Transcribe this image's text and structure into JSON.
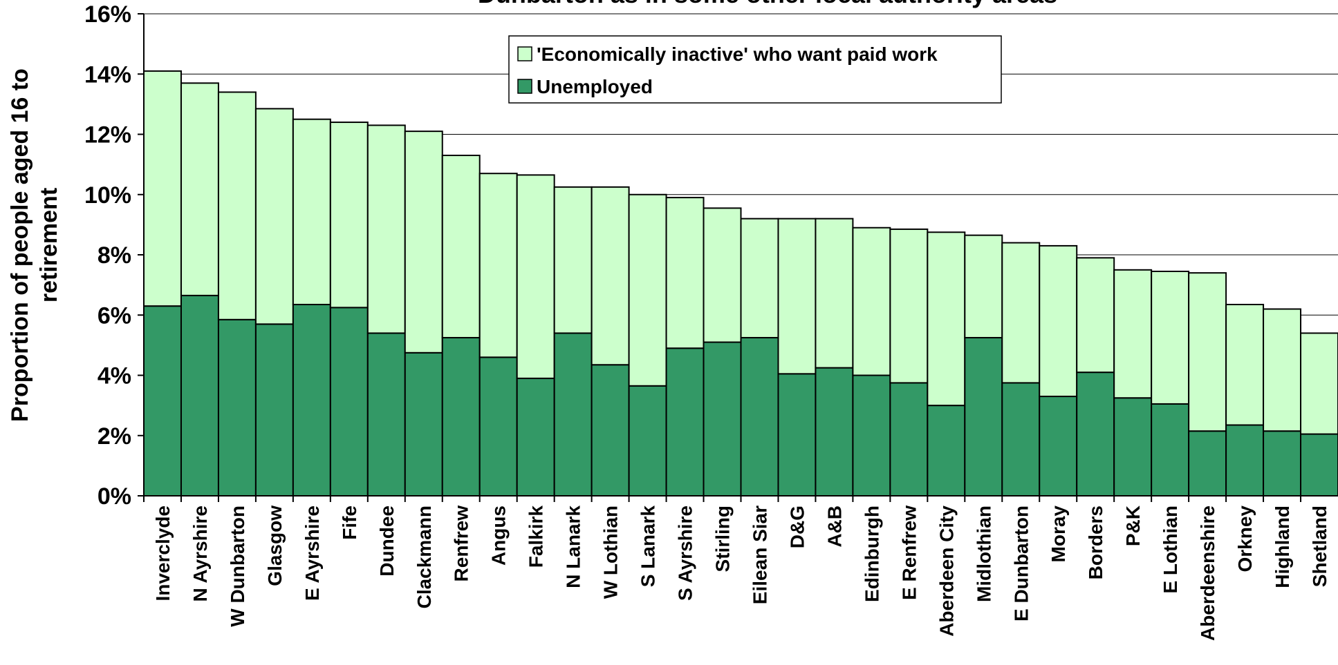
{
  "chart_data": {
    "type": "bar",
    "stacked": true,
    "title": "Dunbarton as in some other local authority areas",
    "xlabel": "",
    "ylabel": "Proportion of people aged 16 to retirement",
    "ylabel_lines": [
      "Proportion of people aged 16 to",
      "retirement"
    ],
    "ylim": [
      0,
      16
    ],
    "yticks": [
      0,
      2,
      4,
      6,
      8,
      10,
      12,
      14,
      16
    ],
    "ytick_labels": [
      "0%",
      "2%",
      "4%",
      "6%",
      "8%",
      "10%",
      "12%",
      "14%",
      "16%"
    ],
    "grid": true,
    "legend_position": "top-center",
    "categories": [
      "Inverclyde",
      "N Ayrshire",
      "W Dunbarton",
      "Glasgow",
      "E Ayrshire",
      "Fife",
      "Dundee",
      "Clackmann",
      "Renfrew",
      "Angus",
      "Falkirk",
      "N Lanark",
      "W Lothian",
      "S Lanark",
      "S Ayrshire",
      "Stirling",
      "Eilean Siar",
      "D&G",
      "A&B",
      "Edinburgh",
      "E Renfrew",
      "Aberdeen City",
      "Midlothian",
      "E Dunbarton",
      "Moray",
      "Borders",
      "P&K",
      "E Lothian",
      "Aberdeenshire",
      "Orkney",
      "Highland",
      "Shetland"
    ],
    "series": [
      {
        "name": "Unemployed",
        "color": "#339966",
        "values": [
          6.3,
          6.65,
          5.85,
          5.7,
          6.35,
          6.25,
          5.4,
          4.75,
          5.25,
          4.6,
          3.9,
          5.4,
          4.35,
          3.65,
          4.9,
          5.1,
          5.25,
          4.05,
          4.25,
          4.0,
          3.75,
          3.0,
          5.25,
          3.75,
          3.3,
          4.1,
          3.25,
          3.05,
          2.15,
          2.35,
          2.15,
          2.05
        ]
      },
      {
        "name": "'Economically inactive' who want paid work",
        "color": "#ccffcc",
        "values": [
          7.8,
          7.05,
          7.55,
          7.15,
          6.15,
          6.15,
          6.9,
          7.35,
          6.05,
          6.1,
          6.75,
          4.85,
          5.9,
          6.35,
          5.0,
          4.45,
          3.95,
          5.15,
          4.95,
          4.9,
          5.1,
          5.75,
          3.4,
          4.65,
          5.0,
          3.8,
          4.25,
          4.4,
          5.25,
          4.0,
          4.05,
          3.35
        ]
      }
    ]
  }
}
